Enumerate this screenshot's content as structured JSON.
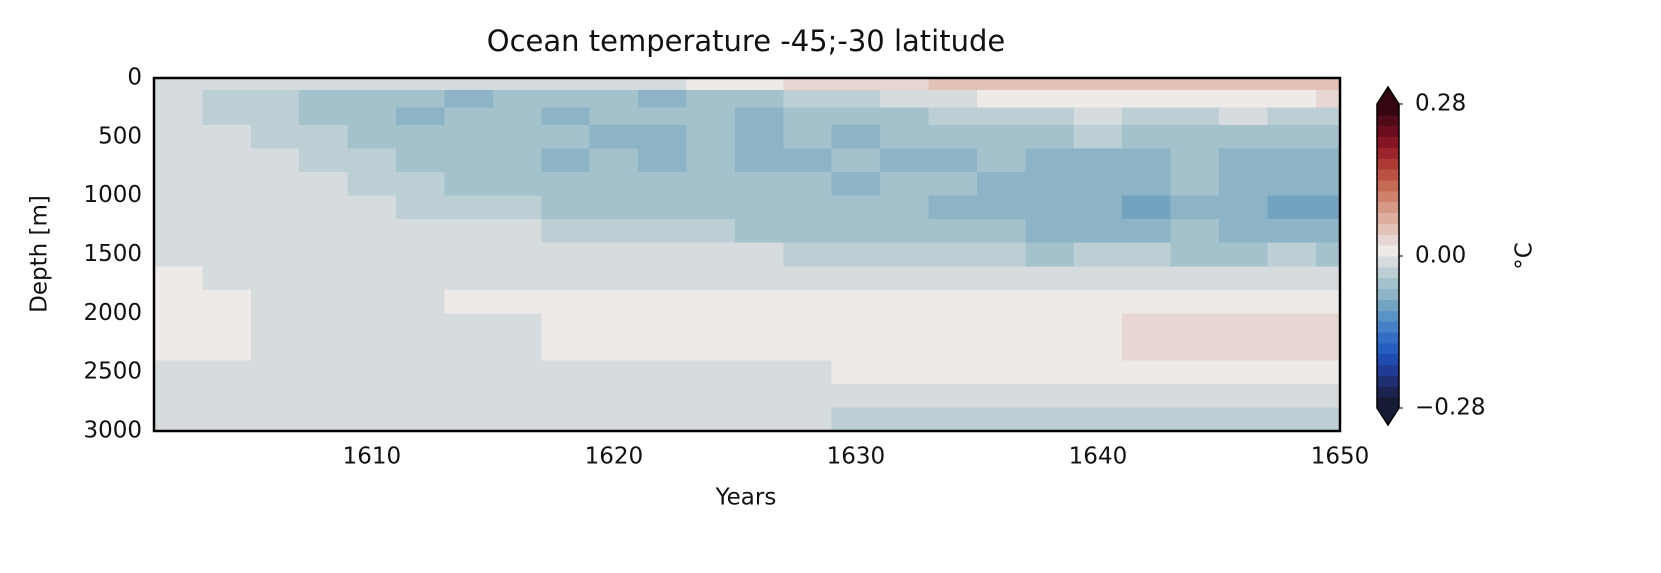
{
  "chart_data": {
    "type": "heatmap",
    "title": "Ocean temperature -45;-30 latitude",
    "x_label": "Years",
    "y_label": "Depth [m]",
    "x": [
      1601,
      1603,
      1605,
      1607,
      1609,
      1611,
      1613,
      1615,
      1617,
      1619,
      1621,
      1623,
      1625,
      1627,
      1629,
      1631,
      1633,
      1635,
      1637,
      1639,
      1641,
      1643,
      1645,
      1647,
      1649
    ],
    "y": [
      0,
      100,
      250,
      400,
      600,
      800,
      1000,
      1200,
      1400,
      1600,
      1800,
      2000,
      2400,
      2600,
      2800
    ],
    "values": [
      [
        -0.01,
        -0.01,
        -0.01,
        -0.01,
        -0.01,
        -0.01,
        -0.01,
        -0.01,
        -0.01,
        -0.01,
        -0.01,
        0.01,
        0.01,
        0.03,
        0.03,
        0.03,
        0.05,
        0.05,
        0.05,
        0.05,
        0.05,
        0.05,
        0.05,
        0.05,
        0.05
      ],
      [
        -0.01,
        -0.03,
        -0.03,
        -0.05,
        -0.05,
        -0.05,
        -0.07,
        -0.05,
        -0.05,
        -0.05,
        -0.07,
        -0.05,
        -0.05,
        -0.03,
        -0.03,
        -0.01,
        -0.01,
        0.01,
        0.01,
        0.01,
        0.01,
        0.01,
        0.01,
        0.01,
        0.03
      ],
      [
        -0.01,
        -0.03,
        -0.03,
        -0.05,
        -0.05,
        -0.07,
        -0.05,
        -0.05,
        -0.07,
        -0.05,
        -0.05,
        -0.05,
        -0.07,
        -0.05,
        -0.05,
        -0.05,
        -0.03,
        -0.03,
        -0.03,
        -0.01,
        -0.03,
        -0.03,
        -0.01,
        -0.03,
        -0.03
      ],
      [
        -0.01,
        -0.01,
        -0.03,
        -0.03,
        -0.05,
        -0.05,
        -0.05,
        -0.05,
        -0.05,
        -0.07,
        -0.07,
        -0.05,
        -0.07,
        -0.05,
        -0.07,
        -0.05,
        -0.05,
        -0.05,
        -0.05,
        -0.03,
        -0.05,
        -0.05,
        -0.05,
        -0.05,
        -0.05
      ],
      [
        -0.01,
        -0.01,
        -0.01,
        -0.03,
        -0.03,
        -0.05,
        -0.05,
        -0.05,
        -0.07,
        -0.05,
        -0.07,
        -0.05,
        -0.07,
        -0.07,
        -0.05,
        -0.07,
        -0.07,
        -0.05,
        -0.07,
        -0.07,
        -0.07,
        -0.05,
        -0.07,
        -0.07,
        -0.07
      ],
      [
        -0.01,
        -0.01,
        -0.01,
        -0.01,
        -0.03,
        -0.03,
        -0.05,
        -0.05,
        -0.05,
        -0.05,
        -0.05,
        -0.05,
        -0.05,
        -0.05,
        -0.07,
        -0.05,
        -0.05,
        -0.07,
        -0.07,
        -0.07,
        -0.07,
        -0.05,
        -0.07,
        -0.07,
        -0.07
      ],
      [
        -0.01,
        -0.01,
        -0.01,
        -0.01,
        -0.01,
        -0.03,
        -0.03,
        -0.03,
        -0.05,
        -0.05,
        -0.05,
        -0.05,
        -0.05,
        -0.05,
        -0.05,
        -0.05,
        -0.07,
        -0.07,
        -0.07,
        -0.07,
        -0.09,
        -0.07,
        -0.07,
        -0.09,
        -0.09
      ],
      [
        -0.01,
        -0.01,
        -0.01,
        -0.01,
        -0.01,
        -0.01,
        -0.01,
        -0.01,
        -0.03,
        -0.03,
        -0.03,
        -0.03,
        -0.05,
        -0.05,
        -0.05,
        -0.05,
        -0.05,
        -0.05,
        -0.07,
        -0.07,
        -0.07,
        -0.05,
        -0.07,
        -0.07,
        -0.07
      ],
      [
        -0.01,
        -0.01,
        -0.01,
        -0.01,
        -0.01,
        -0.01,
        -0.01,
        -0.01,
        -0.01,
        -0.01,
        -0.01,
        -0.01,
        -0.01,
        -0.03,
        -0.03,
        -0.03,
        -0.03,
        -0.03,
        -0.05,
        -0.03,
        -0.03,
        -0.05,
        -0.05,
        -0.03,
        -0.05
      ],
      [
        0.01,
        -0.01,
        -0.01,
        -0.01,
        -0.01,
        -0.01,
        -0.01,
        -0.01,
        -0.01,
        -0.01,
        -0.01,
        -0.01,
        -0.01,
        -0.01,
        -0.01,
        -0.01,
        -0.01,
        -0.01,
        -0.01,
        -0.01,
        -0.01,
        -0.01,
        -0.01,
        -0.01,
        -0.01
      ],
      [
        0.01,
        0.01,
        -0.01,
        -0.01,
        -0.01,
        -0.01,
        0.01,
        0.01,
        0.01,
        0.01,
        0.01,
        0.01,
        0.01,
        0.01,
        0.01,
        0.01,
        0.01,
        0.01,
        0.01,
        0.01,
        0.01,
        0.01,
        0.01,
        0.01,
        0.01
      ],
      [
        0.01,
        0.01,
        -0.01,
        -0.01,
        -0.01,
        -0.01,
        -0.01,
        -0.01,
        0.01,
        0.01,
        0.01,
        0.01,
        0.01,
        0.01,
        0.01,
        0.01,
        0.01,
        0.01,
        0.01,
        0.01,
        0.03,
        0.03,
        0.03,
        0.03,
        0.03
      ],
      [
        -0.01,
        -0.01,
        -0.01,
        -0.01,
        -0.01,
        -0.01,
        -0.01,
        -0.01,
        -0.01,
        -0.01,
        -0.01,
        -0.01,
        -0.01,
        -0.01,
        0.01,
        0.01,
        0.01,
        0.01,
        0.01,
        0.01,
        0.01,
        0.01,
        0.01,
        0.01,
        0.01
      ],
      [
        -0.01,
        -0.01,
        -0.01,
        -0.01,
        -0.01,
        -0.01,
        -0.01,
        -0.01,
        -0.01,
        -0.01,
        -0.01,
        -0.01,
        -0.01,
        -0.01,
        -0.01,
        -0.01,
        -0.01,
        -0.01,
        -0.01,
        -0.01,
        -0.01,
        -0.01,
        -0.01,
        -0.01,
        -0.01
      ],
      [
        -0.01,
        -0.01,
        -0.01,
        -0.01,
        -0.01,
        -0.01,
        -0.01,
        -0.01,
        -0.01,
        -0.01,
        -0.01,
        -0.01,
        -0.01,
        -0.01,
        -0.03,
        -0.03,
        -0.03,
        -0.03,
        -0.03,
        -0.03,
        -0.03,
        -0.03,
        -0.03,
        -0.03,
        -0.03
      ]
    ],
    "xlim": [
      1601,
      1650
    ],
    "ylim": [
      3000,
      0
    ],
    "xticks": [
      1610,
      1620,
      1630,
      1640,
      1650
    ],
    "yticks": [
      0,
      500,
      1000,
      1500,
      2000,
      2500,
      3000
    ],
    "colorbar": {
      "label": "°C",
      "clim": [
        -0.28,
        0.28
      ],
      "ticks": [
        {
          "value": -0.28,
          "label": "−0.28"
        },
        {
          "value": 0,
          "label": "0.00"
        },
        {
          "value": 0.28,
          "label": "0.28"
        }
      ],
      "colormap": [
        "#161a33",
        "#1b2350",
        "#1f2e70",
        "#1f3b93",
        "#1d4bb0",
        "#245cc0",
        "#346dc4",
        "#4680c6",
        "#5a93c6",
        "#72a4c1",
        "#8cb4c6",
        "#a4c2cc",
        "#bccfd5",
        "#d6dbde",
        "#eeeae8",
        "#e8d6d2",
        "#e3c3b8",
        "#ddae9e",
        "#d69884",
        "#ce816b",
        "#c56a54",
        "#bb5142",
        "#ad3a35",
        "#9c242c",
        "#851425",
        "#6b0d1e",
        "#510a17",
        "#360610"
      ]
    }
  }
}
